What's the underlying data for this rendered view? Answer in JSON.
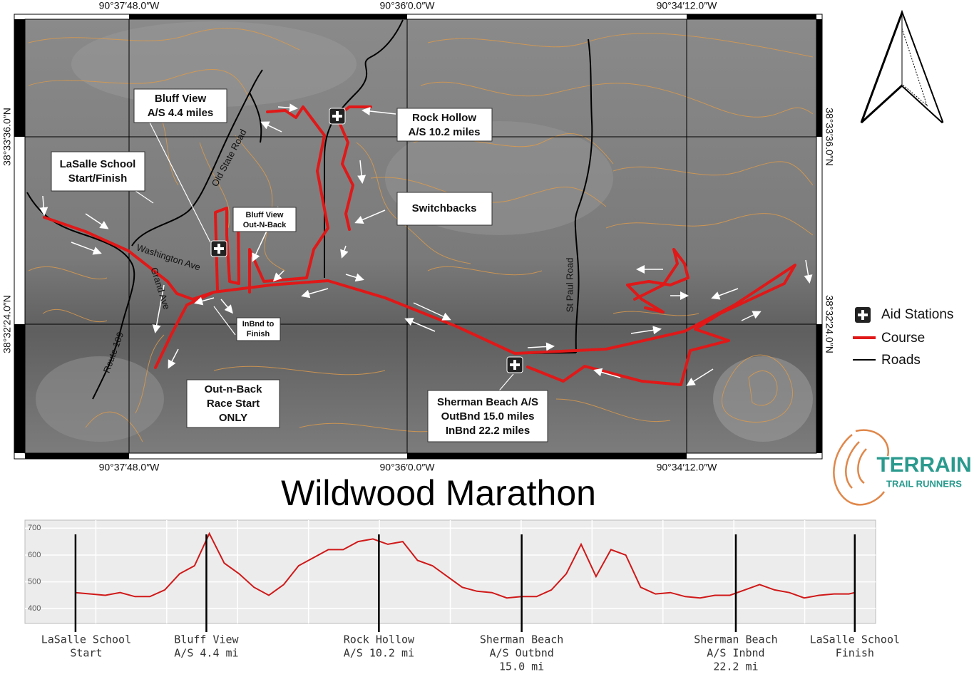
{
  "title": "Wildwood Marathon",
  "map": {
    "coordinates": {
      "top": [
        "90°37′48.0″W",
        "90°36′0.0″W",
        "90°34′12.0″W"
      ],
      "bottom": [
        "90°37′48.0″W",
        "90°36′0.0″W",
        "90°34′12.0″W"
      ],
      "left": [
        "38°33′36.0″N",
        "38°32′24.0″N"
      ],
      "right": [
        "38°33′36.0″N",
        "38°32′24.0″N"
      ]
    },
    "annotations": [
      {
        "lines": [
          "Bluff View",
          "A/S 4.4 miles"
        ]
      },
      {
        "lines": [
          "Rock Hollow",
          "A/S 10.2 miles"
        ]
      },
      {
        "lines": [
          "LaSalle School",
          "Start/Finish"
        ]
      },
      {
        "lines": [
          "Switchbacks"
        ]
      },
      {
        "lines": [
          "Bluff View",
          "Out-N-Back"
        ]
      },
      {
        "lines": [
          "InBnd to",
          "Finish"
        ]
      },
      {
        "lines": [
          "Out-n-Back",
          "Race Start",
          "ONLY"
        ]
      },
      {
        "lines": [
          "Sherman Beach A/S",
          "OutBnd 15.0 miles",
          "InBnd 22.2 miles"
        ]
      }
    ],
    "road_labels": [
      "Old State Road",
      "Washington Ave",
      "Grand Ave",
      "Route 109",
      "St Paul Road"
    ],
    "legend": [
      "Aid Stations",
      "Course",
      "Roads"
    ]
  },
  "logo": {
    "name": "TERRAIN",
    "tagline": "TRAIL RUNNERS"
  },
  "chart_data": {
    "type": "line",
    "color": "#d01818",
    "grid": true,
    "x": [
      0,
      0.5,
      1,
      1.5,
      2,
      2.5,
      3,
      3.5,
      4,
      4.5,
      5,
      5.5,
      6,
      6.5,
      7,
      7.5,
      8,
      8.5,
      9,
      9.5,
      10,
      10.5,
      11,
      11.5,
      12,
      12.5,
      13,
      13.5,
      14,
      14.5,
      15,
      15.5,
      16,
      16.5,
      17,
      17.5,
      18,
      18.5,
      19,
      19.5,
      20,
      20.5,
      21,
      21.5,
      22,
      22.5,
      23,
      23.5,
      24,
      24.5,
      25,
      25.5,
      26,
      26.2
    ],
    "values": [
      460,
      455,
      450,
      460,
      445,
      445,
      470,
      530,
      560,
      680,
      570,
      530,
      480,
      450,
      490,
      560,
      590,
      620,
      620,
      650,
      660,
      640,
      650,
      580,
      560,
      520,
      480,
      465,
      460,
      440,
      445,
      445,
      470,
      530,
      640,
      520,
      620,
      600,
      480,
      455,
      460,
      445,
      440,
      450,
      450,
      470,
      490,
      470,
      460,
      440,
      450,
      455,
      455,
      460
    ],
    "xlim": [
      -1.7,
      26.9
    ],
    "ylim": [
      345,
      730
    ],
    "yticks": [
      400,
      500,
      600,
      700
    ],
    "markers": [
      {
        "x": 0,
        "label": [
          "LaSalle School",
          "Start"
        ]
      },
      {
        "x": 4.4,
        "label": [
          "Bluff View",
          "A/S 4.4 mi"
        ]
      },
      {
        "x": 10.2,
        "label": [
          "Rock Hollow",
          "A/S 10.2 mi"
        ]
      },
      {
        "x": 15.0,
        "label": [
          "Sherman Beach",
          "A/S Outbnd",
          "15.0 mi"
        ]
      },
      {
        "x": 22.2,
        "label": [
          "Sherman Beach",
          "A/S Inbnd",
          "22.2 mi"
        ]
      },
      {
        "x": 26.2,
        "label": [
          "LaSalle School",
          "Finish"
        ]
      }
    ]
  }
}
